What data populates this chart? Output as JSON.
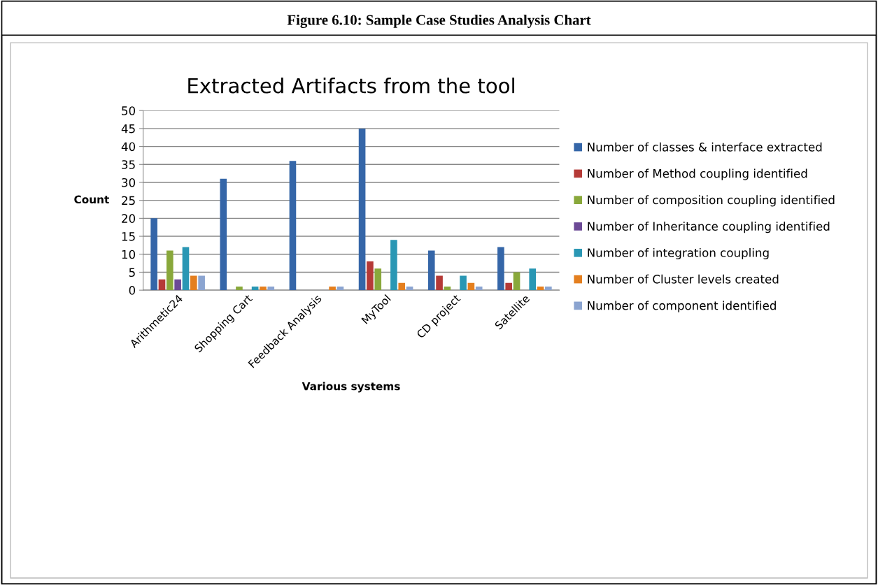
{
  "chart_data": {
    "type": "bar",
    "title": "Extracted Artifacts from the tool",
    "xlabel": "Various systems",
    "ylabel": "Count",
    "annotations": [
      "Figure 6.10: Sample Case Studies Analysis Chart"
    ],
    "categories": [
      "Arithmetic24",
      "Shopping Cart",
      "Feedback Analysis",
      "MyTool",
      "CD project",
      "Satellite"
    ],
    "series": [
      {
        "name": "Number of classes & interface extracted",
        "color": "#3566a8",
        "values": [
          20,
          31,
          36,
          45,
          11,
          12
        ]
      },
      {
        "name": "Number of Method coupling identified",
        "color": "#b53a37",
        "values": [
          3,
          null,
          null,
          8,
          4,
          2
        ]
      },
      {
        "name": "Number of composition coupling identified",
        "color": "#89a83b",
        "values": [
          11,
          1,
          null,
          6,
          1,
          5
        ]
      },
      {
        "name": "Number of Inheritance coupling identified",
        "color": "#6c4a96",
        "values": [
          3,
          null,
          null,
          null,
          null,
          null
        ]
      },
      {
        "name": "Number of integration coupling",
        "color": "#2a97b4",
        "values": [
          12,
          1,
          null,
          14,
          4,
          6
        ]
      },
      {
        "name": "Number of Cluster levels created",
        "color": "#e47f1f",
        "values": [
          4,
          1,
          1,
          2,
          2,
          1
        ]
      },
      {
        "name": "Number of component identified",
        "color": "#8ba4d0",
        "values": [
          4,
          1,
          1,
          1,
          1,
          1
        ]
      }
    ],
    "ylim": [
      0,
      50
    ],
    "yticks": [
      0,
      5,
      10,
      15,
      20,
      25,
      30,
      35,
      40,
      45,
      50
    ],
    "grid": "y",
    "legend": "right"
  }
}
